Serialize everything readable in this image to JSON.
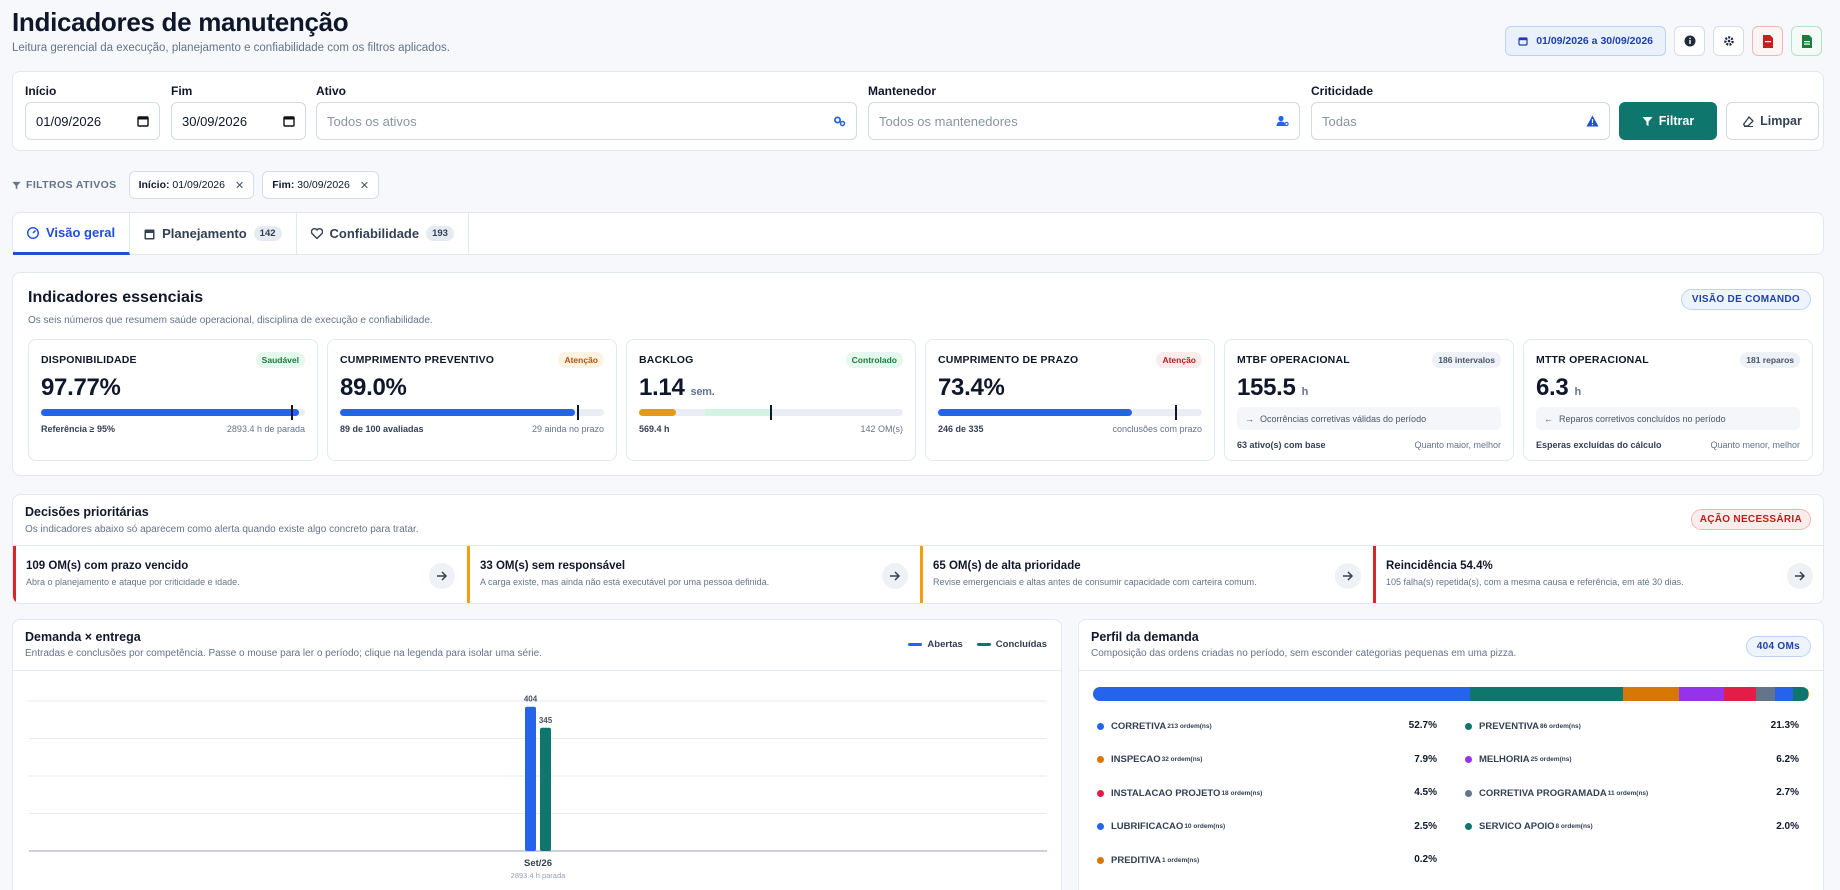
{
  "header": {
    "title": "Indicadores de manutenção",
    "subtitle": "Leitura gerencial da execução, planejamento e confiabilidade com os filtros aplicados.",
    "date_range": "01/09/2026 a 30/09/2026"
  },
  "filters": {
    "inicio_label": "Início",
    "inicio_value": "01/09/2026",
    "fim_label": "Fim",
    "fim_value": "30/09/2026",
    "ativo_label": "Ativo",
    "ativo_placeholder": "Todos os ativos",
    "mantenedor_label": "Mantenedor",
    "mantenedor_placeholder": "Todos os mantenedores",
    "criticidade_label": "Criticidade",
    "criticidade_placeholder": "Todas",
    "filter_button": "Filtrar",
    "clear_button": "Limpar"
  },
  "active_filters": {
    "label": "FILTROS ATIVOS",
    "chips": [
      {
        "key": "Início:",
        "value": "01/09/2026"
      },
      {
        "key": "Fim:",
        "value": "30/09/2026"
      }
    ]
  },
  "tabs": [
    {
      "label": "Visão geral",
      "count": ""
    },
    {
      "label": "Planejamento",
      "count": "142"
    },
    {
      "label": "Confiabilidade",
      "count": "193"
    }
  ],
  "kpis": {
    "title": "Indicadores essenciais",
    "subtitle": "Os seis números que resumem saúde operacional, disciplina de execução e confiabilidade.",
    "pill": "VISÃO DE COMANDO",
    "cards": [
      {
        "title": "DISPONIBILIDADE",
        "badge": "Saudável",
        "value": "97.77%",
        "unit": "",
        "progress": 0.9777,
        "marker": 0.95,
        "foot_left": "Referência ≥ 95%",
        "foot_right": "2893.4 h de parada"
      },
      {
        "title": "CUMPRIMENTO PREVENTIVO",
        "badge": "Atenção",
        "value": "89.0%",
        "unit": "",
        "progress": 0.89,
        "marker": 0.9,
        "foot_left": "89 de 100 avaliadas",
        "foot_right": "29 ainda no prazo"
      },
      {
        "title": "BACKLOG",
        "badge": "Controlado",
        "value": "1.14",
        "unit": "sem.",
        "progress": 0.14,
        "marker": 0.5,
        "foot_left": "569.4 h",
        "foot_right": "142 OM(s)"
      },
      {
        "title": "CUMPRIMENTO DE PRAZO",
        "badge": "Atenção",
        "value": "73.4%",
        "unit": "",
        "progress": 0.734,
        "marker": 0.9,
        "foot_left": "246 de 335",
        "foot_right": "conclusões com prazo"
      },
      {
        "title": "MTBF OPERACIONAL",
        "badge": "186 intervalos",
        "value": "155.5",
        "unit": "h",
        "note": "Ocorrências corretivas válidas do período",
        "foot_left": "63 ativo(s) com base",
        "foot_right": "Quanto maior, melhor"
      },
      {
        "title": "MTTR OPERACIONAL",
        "badge": "181 reparos",
        "value": "6.3",
        "unit": "h",
        "note": "Reparos corretivos concluídos no período",
        "foot_left": "Esperas excluídas do cálculo",
        "foot_right": "Quanto menor, melhor"
      }
    ]
  },
  "decisions": {
    "title": "Decisões prioritárias",
    "subtitle": "Os indicadores abaixo só aparecem como alerta quando existe algo concreto para tratar.",
    "pill": "AÇÃO NECESSÁRIA",
    "items": [
      {
        "title": "109 OM(s) com prazo vencido",
        "desc": "Abra o planejamento e ataque por criticidade e idade."
      },
      {
        "title": "33 OM(s) sem responsável",
        "desc": "A carga existe, mas ainda não está executável por uma pessoa definida."
      },
      {
        "title": "65 OM(s) de alta prioridade",
        "desc": "Revise emergenciais e altas antes de consumir capacidade com carteira comum."
      },
      {
        "title": "Reincidência 54.4%",
        "desc": "105 falha(s) repetida(s), com a mesma causa e referência, em até 30 dias."
      }
    ]
  },
  "demand": {
    "title": "Demanda × entrega",
    "subtitle": "Entradas e conclusões por competência. Passe o mouse para ler o período; clique na legenda para isolar uma série.",
    "colors": {
      "abertas": "#2563eb",
      "concluidas": "#0f766e"
    }
  },
  "chart_data": {
    "type": "bar",
    "categories": [
      "Set/26"
    ],
    "category_sublabels": [
      "2893.4 h parada"
    ],
    "series": [
      {
        "name": "Abertas",
        "values": [
          404
        ]
      },
      {
        "name": "Concluídas",
        "values": [
          345
        ]
      }
    ],
    "ylim": [
      0,
      420
    ],
    "grid": true,
    "legend": "top-right"
  },
  "profile": {
    "title": "Perfil da demanda",
    "subtitle": "Composição das ordens criadas no período, sem esconder categorias pequenas em uma pizza.",
    "pill": "404 OMs",
    "segments": [
      {
        "name": "CORRETIVA",
        "count": "213 ordem(ns)",
        "pct": "52.7%",
        "share": 52.7,
        "color": "#2563eb"
      },
      {
        "name": "PREVENTIVA",
        "count": "86 ordem(ns)",
        "pct": "21.3%",
        "share": 21.3,
        "color": "#0f766e"
      },
      {
        "name": "INSPECAO",
        "count": "32 ordem(ns)",
        "pct": "7.9%",
        "share": 7.9,
        "color": "#d97706"
      },
      {
        "name": "MELHORIA",
        "count": "25 ordem(ns)",
        "pct": "6.2%",
        "share": 6.2,
        "color": "#9333ea"
      },
      {
        "name": "INSTALACAO PROJETO",
        "count": "18 ordem(ns)",
        "pct": "4.5%",
        "share": 4.5,
        "color": "#e11d48"
      },
      {
        "name": "CORRETIVA PROGRAMADA",
        "count": "11 ordem(ns)",
        "pct": "2.7%",
        "share": 2.7,
        "color": "#64748b"
      },
      {
        "name": "LUBRIFICACAO",
        "count": "10 ordem(ns)",
        "pct": "2.5%",
        "share": 2.5,
        "color": "#2563eb"
      },
      {
        "name": "SERVICO APOIO",
        "count": "8 ordem(ns)",
        "pct": "2.0%",
        "share": 2.0,
        "color": "#0f766e"
      },
      {
        "name": "PREDITIVA",
        "count": "1 ordem(ns)",
        "pct": "0.2%",
        "share": 0.2,
        "color": "#d97706"
      }
    ]
  }
}
